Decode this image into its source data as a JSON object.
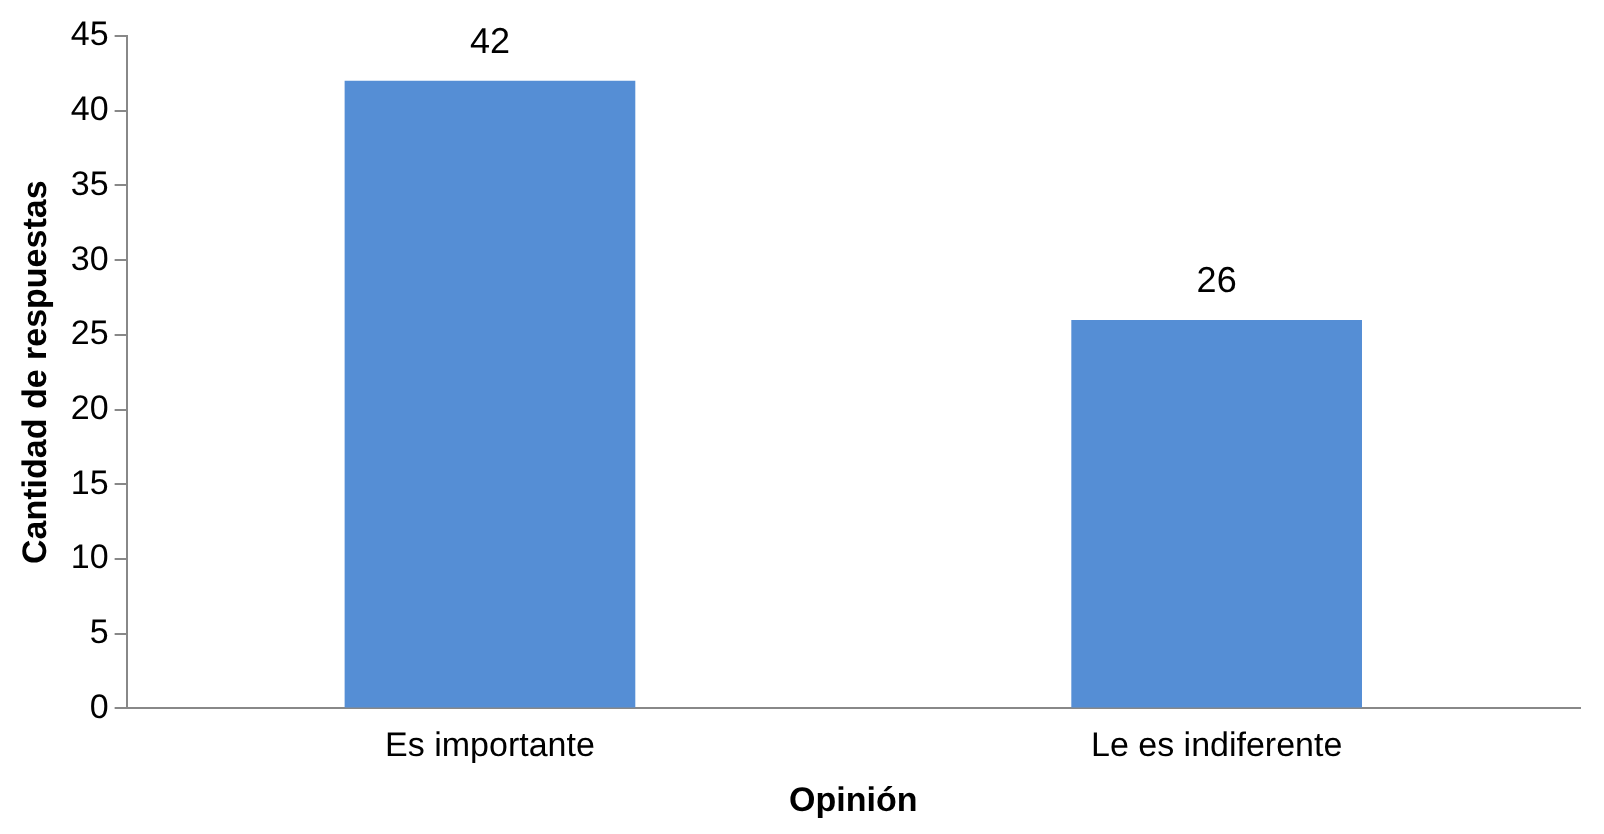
{
  "chart_data": {
    "type": "bar",
    "xlabel": "Opinión",
    "ylabel": "Cantidad de respuestas",
    "categories": [
      "Es importante",
      "Le es indiferente"
    ],
    "values": [
      42,
      26
    ],
    "color": "#558ed5",
    "ylim": [
      0,
      45
    ],
    "yticks": [
      0,
      5,
      10,
      15,
      20,
      25,
      30,
      35,
      40,
      45
    ],
    "grid": false,
    "legend": false,
    "data_labels": true
  }
}
